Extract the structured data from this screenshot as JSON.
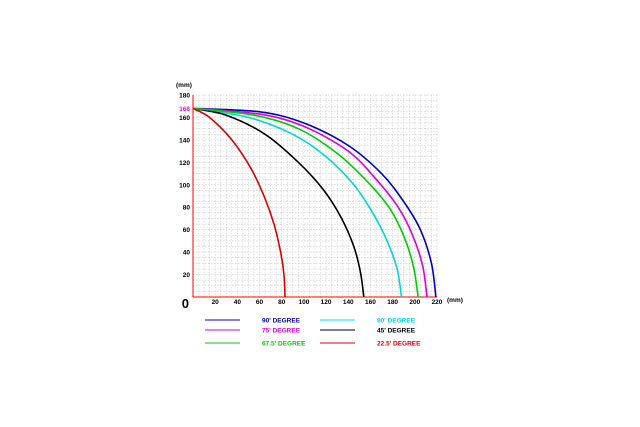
{
  "chart_data": {
    "type": "line",
    "xlim": [
      0,
      220
    ],
    "ylim": [
      0,
      180
    ],
    "x_ticks": [
      20,
      40,
      60,
      80,
      100,
      120,
      140,
      160,
      180,
      200,
      220
    ],
    "y_ticks": [
      20,
      40,
      60,
      80,
      100,
      120,
      140,
      160,
      180
    ],
    "x_unit": "(mm)",
    "y_unit": "(mm)",
    "origin_label": "0",
    "highlight_y": {
      "value": 168,
      "label": "168",
      "color": "#ff00ff"
    },
    "grid": true,
    "axis_color": "#ff0000",
    "series": [
      {
        "name": "90' DEGREE",
        "color": "#0000cc",
        "x": [
          0,
          60,
          100,
          140,
          170,
          190,
          205,
          215,
          219
        ],
        "y": [
          168,
          165,
          155,
          135,
          110,
          85,
          60,
          30,
          0
        ]
      },
      {
        "name": "80' DEGREE",
        "color": "#00d8d8",
        "x": [
          0,
          50,
          90,
          120,
          145,
          162,
          175,
          184,
          188
        ],
        "y": [
          168,
          160,
          145,
          125,
          100,
          75,
          50,
          25,
          0
        ]
      },
      {
        "name": "75' DEGREE",
        "color": "#dd00dd",
        "x": [
          0,
          60,
          100,
          140,
          165,
          185,
          198,
          207,
          211
        ],
        "y": [
          168,
          163,
          152,
          130,
          105,
          80,
          55,
          28,
          0
        ]
      },
      {
        "name": "45' DEGREE",
        "color": "#000000",
        "x": [
          0,
          30,
          65,
          95,
          118,
          134,
          145,
          151,
          154
        ],
        "y": [
          168,
          162,
          145,
          120,
          95,
          70,
          45,
          22,
          0
        ]
      },
      {
        "name": "67.5' DEGREE",
        "color": "#00cc00",
        "x": [
          0,
          55,
          95,
          130,
          158,
          178,
          191,
          199,
          203
        ],
        "y": [
          168,
          162,
          150,
          128,
          102,
          78,
          52,
          26,
          0
        ]
      },
      {
        "name": "22.5' DEGREE",
        "color": "#dd0000",
        "x": [
          0,
          15,
          35,
          52,
          64,
          73,
          79,
          82,
          83
        ],
        "y": [
          168,
          160,
          140,
          115,
          90,
          65,
          40,
          20,
          0
        ]
      }
    ],
    "legend_order": [
      [
        0,
        1
      ],
      [
        2,
        3
      ],
      [
        4,
        5
      ]
    ],
    "legend_placement": "below"
  }
}
